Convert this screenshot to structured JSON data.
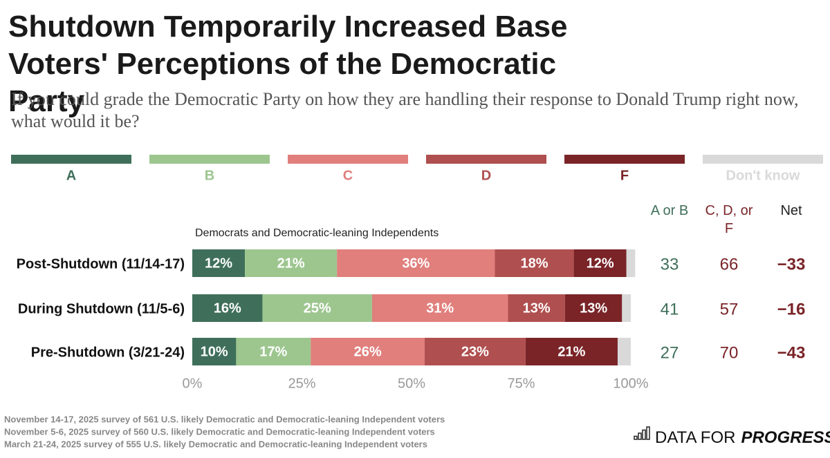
{
  "chart_data": {
    "type": "bar",
    "orientation": "horizontal",
    "stacked": true,
    "title": "Shutdown Temporarily Increased Base Voters' Perceptions of the Democratic Party",
    "subtitle": "If you could grade the Democratic Party on how they are handling their response to Donald Trump right now, what would it be?",
    "annotation": "Democrats and Democratic-leaning Independents",
    "categories": [
      "Post-Shutdown (11/14-17)",
      "During Shutdown (11/5-6)",
      "Pre-Shutdown (3/21-24)"
    ],
    "series": [
      {
        "name": "A",
        "color": "#3f6f5a",
        "values": [
          12,
          16,
          10
        ],
        "value_labels": [
          "12%",
          "16%",
          "10%"
        ]
      },
      {
        "name": "B",
        "color": "#9dc68f",
        "values": [
          21,
          25,
          17
        ],
        "value_labels": [
          "21%",
          "25%",
          "17%"
        ]
      },
      {
        "name": "C",
        "color": "#e07f7c",
        "values": [
          36,
          31,
          26
        ],
        "value_labels": [
          "36%",
          "31%",
          "26%"
        ]
      },
      {
        "name": "D",
        "color": "#b04f4f",
        "values": [
          18,
          13,
          23
        ],
        "value_labels": [
          "18%",
          "13%",
          "23%"
        ]
      },
      {
        "name": "F",
        "color": "#7a2428",
        "values": [
          12,
          13,
          21
        ],
        "value_labels": [
          "12%",
          "13%",
          "21%"
        ]
      },
      {
        "name": "Don't know",
        "color": "#d9d9d9",
        "values": [
          2,
          2,
          3
        ]
      }
    ],
    "xlim": [
      0,
      100
    ],
    "xticks": [
      {
        "value": 0,
        "label": "0%"
      },
      {
        "value": 25,
        "label": "25%"
      },
      {
        "value": 50,
        "label": "50%"
      },
      {
        "value": 75,
        "label": "75%"
      },
      {
        "value": 100,
        "label": "100%"
      }
    ],
    "summary_columns": [
      {
        "name": "A or B",
        "color": "#3f6f5a",
        "values": [
          33,
          41,
          27
        ]
      },
      {
        "name": "C, D, or F",
        "color": "#7a2428",
        "values": [
          66,
          57,
          70
        ]
      },
      {
        "name": "Net",
        "color": "#7a2428",
        "values": [
          -33,
          -16,
          -43
        ],
        "value_labels": [
          "−33",
          "−16",
          "−43"
        ]
      }
    ],
    "footnotes": [
      "November 14-17, 2025 survey of 561 U.S. likely Democratic and Democratic-leaning Independent voters",
      "November 5-6, 2025 survey of 560 U.S. likely Democratic and Democratic-leaning Independent voters",
      "March 21-24, 2025 survey of 555 U.S. likely Democratic and Democratic-leaning Independent voters"
    ],
    "logo": {
      "text": "DATA FOR",
      "emphasis": "PROGRESS"
    }
  }
}
